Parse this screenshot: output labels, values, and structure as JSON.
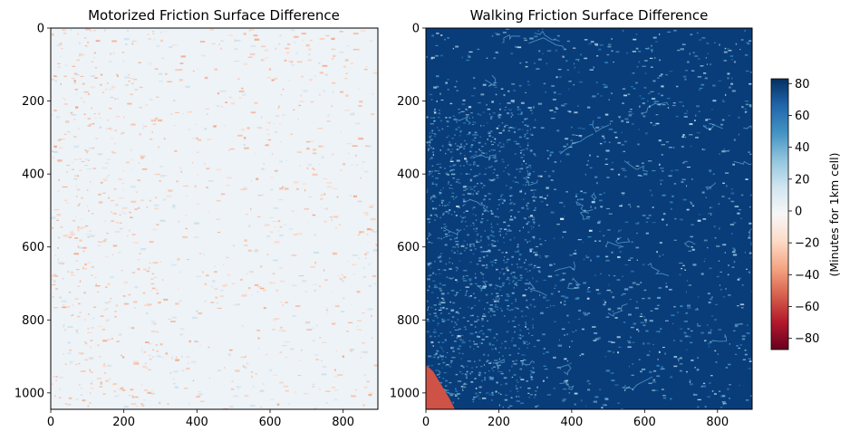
{
  "chart_data": [
    {
      "type": "heatmap",
      "title": "Motorized Friction Surface Difference",
      "xlabel": "",
      "ylabel": "",
      "xlim": [
        0,
        895
      ],
      "ylim": [
        1045,
        0
      ],
      "xticks": [
        0,
        200,
        400,
        600,
        800
      ],
      "yticks": [
        0,
        200,
        400,
        600,
        800,
        1000
      ],
      "values_description_range": [
        -20,
        10
      ],
      "dominant_color": "#eef3f7",
      "grid": false
    },
    {
      "type": "heatmap",
      "title": "Walking Friction Surface Difference",
      "xlabel": "",
      "ylabel": "",
      "xlim": [
        0,
        895
      ],
      "ylim": [
        1045,
        0
      ],
      "xticks": [
        0,
        200,
        400,
        600,
        800
      ],
      "yticks": [
        0,
        200,
        400,
        600,
        800,
        1000
      ],
      "dominant_value": 85,
      "corner_patch_value": -60,
      "dominant_color": "#083d7a",
      "patch_color": "#cf5246",
      "grid": false
    }
  ],
  "colorbar": {
    "label": "(Minutes for 1km cell)",
    "range": [
      -87,
      83
    ],
    "ticks": [
      80,
      60,
      40,
      20,
      0,
      -20,
      -40,
      -60,
      -80
    ],
    "tick_labels": [
      "80",
      "60",
      "40",
      "20",
      "0",
      "−20",
      "−40",
      "−60",
      "−80"
    ],
    "colormap": "RdBu",
    "stops": [
      "#67001f",
      "#b2182b",
      "#d6604d",
      "#f4a582",
      "#fddbc7",
      "#f7f7f7",
      "#d1e5f0",
      "#92c5de",
      "#4393c3",
      "#2166ac",
      "#053061"
    ]
  }
}
